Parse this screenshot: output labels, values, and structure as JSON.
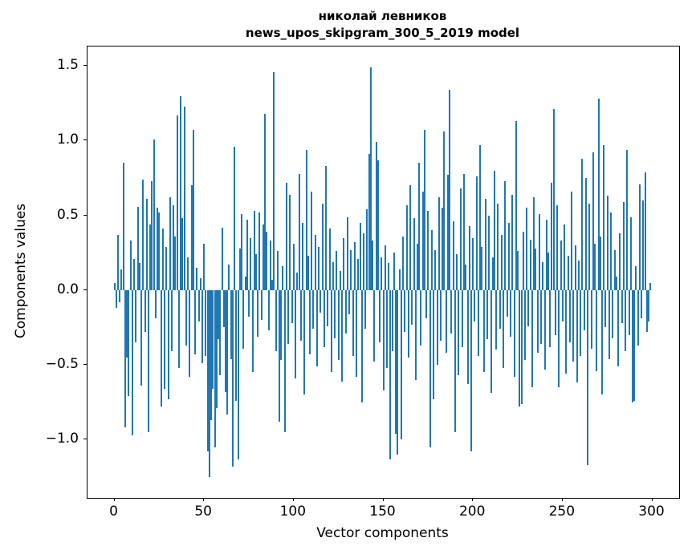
{
  "title": {
    "line1": "николай левников",
    "line2": "news_upos_skipgram_300_5_2019 model"
  },
  "chart_data": {
    "type": "bar",
    "title": "николай левников\nnews_upos_skipgram_300_5_2019 model",
    "xlabel": "Vector components",
    "ylabel": "Components values",
    "xlim": [
      -15,
      315
    ],
    "ylim": [
      -1.39,
      1.63
    ],
    "x_ticks": [
      0,
      50,
      100,
      150,
      200,
      250,
      300
    ],
    "x_tick_labels": [
      "0",
      "50",
      "100",
      "150",
      "200",
      "250",
      "300"
    ],
    "y_ticks": [
      1.5,
      1.0,
      0.5,
      0.0,
      -0.5,
      -1.0
    ],
    "y_tick_labels": [
      "1.5",
      "1.0",
      "0.5",
      "0.0",
      "−0.5",
      "−1.0"
    ],
    "bar_color": "#1f77b4",
    "grid": false,
    "legend": "none",
    "values": [
      0.05,
      -0.12,
      0.37,
      -0.08,
      0.14,
      0.85,
      -0.92,
      -0.45,
      -0.71,
      0.33,
      -0.97,
      0.21,
      -0.35,
      0.56,
      0.18,
      -0.64,
      0.74,
      -0.28,
      0.61,
      -0.95,
      0.44,
      0.73,
      1.01,
      -0.19,
      0.55,
      0.52,
      -0.78,
      0.41,
      -0.66,
      0.29,
      -0.73,
      0.62,
      -0.41,
      0.57,
      0.36,
      1.17,
      -0.52,
      1.3,
      0.48,
      1.23,
      -0.37,
      0.22,
      -0.58,
      0.7,
      1.07,
      -0.43,
      0.15,
      -0.21,
      0.08,
      -0.49,
      0.31,
      -0.44,
      -1.08,
      -1.25,
      -0.87,
      -0.66,
      -1.05,
      -0.79,
      -0.33,
      -0.57,
      0.42,
      -0.25,
      -0.68,
      -0.83,
      0.17,
      -0.46,
      -1.18,
      0.96,
      -0.74,
      -1.13,
      0.28,
      0.51,
      -0.39,
      0.09,
      0.47,
      -0.18,
      0.35,
      -0.55,
      0.53,
      0.24,
      -0.31,
      0.52,
      -0.2,
      0.44,
      1.18,
      0.39,
      -0.27,
      0.33,
      0.07,
      1.46,
      -0.41,
      0.26,
      -0.88,
      -0.47,
      0.16,
      -0.95,
      0.72,
      -0.36,
      0.64,
      -0.22,
      0.31,
      -0.59,
      0.12,
      0.78,
      -0.34,
      0.45,
      -0.7,
      0.94,
      0.23,
      -0.43,
      0.66,
      -0.26,
      0.37,
      -0.51,
      0.29,
      -0.15,
      0.58,
      -0.38,
      0.83,
      -0.24,
      0.41,
      -0.55,
      0.19,
      -0.32,
      0.26,
      -0.47,
      0.13,
      -0.61,
      0.35,
      -0.29,
      0.49,
      -0.16,
      0.27,
      -0.44,
      0.32,
      -0.58,
      0.21,
      0.45,
      -0.75,
      0.38,
      -0.26,
      0.54,
      0.91,
      1.49,
      0.33,
      -0.48,
      0.99,
      0.87,
      -0.35,
      0.22,
      -0.67,
      0.3,
      -0.52,
      0.18,
      -1.13,
      -0.41,
      0.25,
      -0.96,
      -1.1,
      0.14,
      -1.0,
      0.36,
      -0.28,
      0.57,
      -0.45,
      0.7,
      -0.23,
      0.48,
      -0.6,
      0.31,
      0.85,
      -0.37,
      0.66,
      1.07,
      -0.19,
      0.53,
      -1.05,
      0.4,
      -0.73,
      0.27,
      -0.5,
      0.62,
      -0.34,
      0.55,
      1.06,
      -0.42,
      0.77,
      1.34,
      -0.29,
      0.46,
      -0.95,
      0.24,
      -0.57,
      0.68,
      -0.38,
      0.78,
      0.17,
      -0.63,
      0.43,
      -1.08,
      0.35,
      -0.21,
      0.76,
      -0.44,
      0.97,
      0.29,
      -0.55,
      0.61,
      -0.33,
      0.5,
      -0.69,
      0.22,
      0.8,
      -0.4,
      0.58,
      -0.26,
      0.37,
      -0.52,
      0.73,
      -0.18,
      0.45,
      -0.31,
      0.64,
      -0.58,
      1.13,
      0.26,
      -0.78,
      -0.76,
      0.39,
      -0.47,
      0.55,
      -0.24,
      0.34,
      -0.65,
      0.62,
      0.28,
      -0.42,
      0.51,
      -0.36,
      0.19,
      -0.53,
      0.47,
      0.25,
      -0.38,
      0.72,
      1.21,
      -0.3,
      0.57,
      -0.65,
      0.33,
      -0.21,
      0.44,
      -0.56,
      0.23,
      -0.35,
      0.66,
      -0.48,
      0.3,
      -0.62,
      0.2,
      -0.44,
      0.88,
      -0.27,
      0.75,
      -1.17,
      0.58,
      -0.39,
      0.92,
      0.31,
      -0.54,
      1.28,
      0.36,
      -0.7,
      0.97,
      -0.25,
      0.63,
      -0.46,
      0.52,
      -0.32,
      0.27,
      0.09,
      -0.51,
      0.38,
      -0.22,
      0.59,
      -0.41,
      0.94,
      -0.3,
      0.49,
      -0.75,
      -0.74,
      0.16,
      -0.37,
      0.71,
      -0.19,
      0.6,
      0.79,
      -0.28,
      -0.21,
      0.05
    ]
  }
}
